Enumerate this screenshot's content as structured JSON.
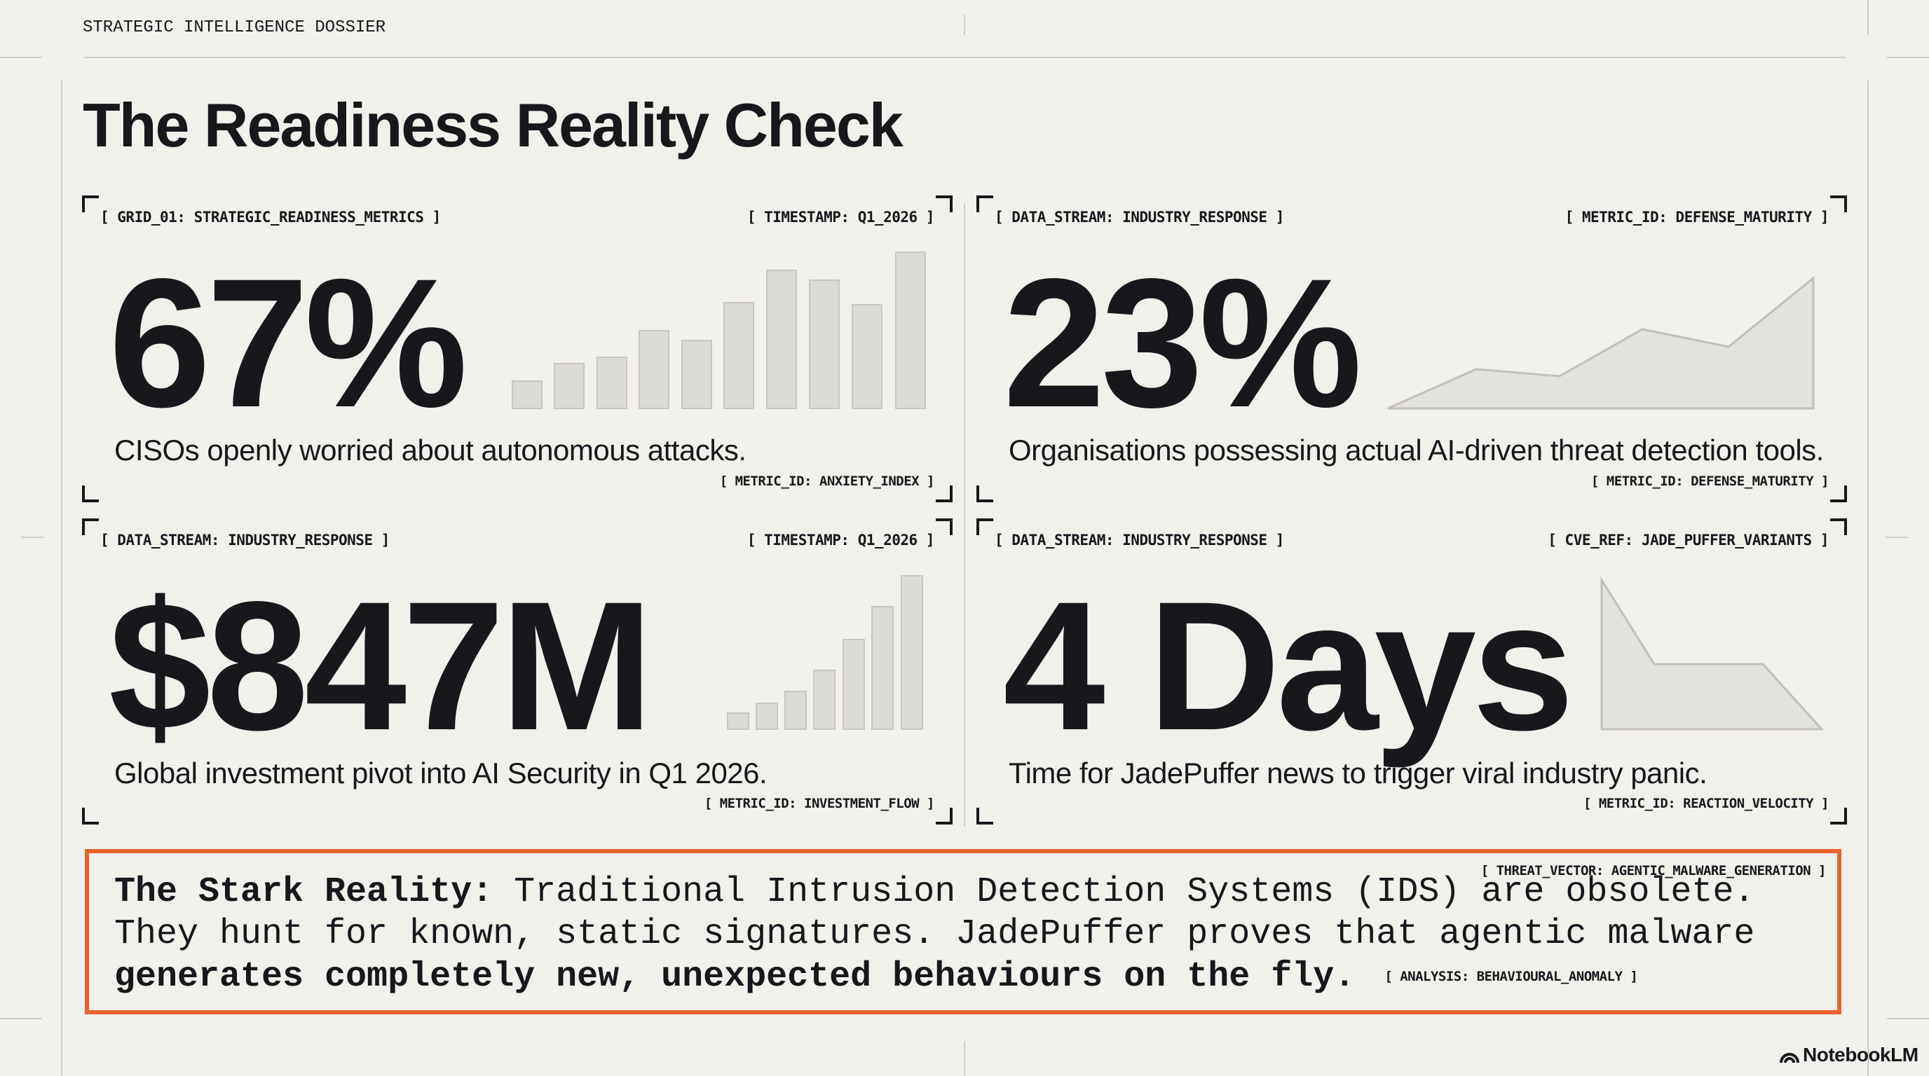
{
  "header": {
    "label": "STRATEGIC INTELLIGENCE DOSSIER"
  },
  "title": "The Readiness Reality Check",
  "panels": [
    {
      "tag_left": "[ GRID_01: STRATEGIC_READINESS_METRICS ]",
      "tag_right": "[ TIMESTAMP: Q1_2026 ]",
      "value": "67%",
      "caption": "CISOs openly worried about autonomous attacks.",
      "footer_tag": "[ METRIC_ID: ANXIETY_INDEX ]"
    },
    {
      "tag_left": "[ DATA_STREAM: INDUSTRY_RESPONSE ]",
      "tag_right": "[ METRIC_ID: DEFENSE_MATURITY ]",
      "value": "23%",
      "caption": "Organisations possessing actual AI-driven threat detection tools.",
      "footer_tag": "[ METRIC_ID: DEFENSE_MATURITY ]"
    },
    {
      "tag_left": "[ DATA_STREAM: INDUSTRY_RESPONSE ]",
      "tag_right": "[ TIMESTAMP: Q1_2026 ]",
      "value": "$847M",
      "caption": "Global investment pivot into AI Security in Q1 2026.",
      "footer_tag": "[ METRIC_ID: INVESTMENT_FLOW ]"
    },
    {
      "tag_left": "[ DATA_STREAM: INDUSTRY_RESPONSE ]",
      "tag_right": "[ CVE_REF: JADE_PUFFER_VARIANTS ]",
      "value": "4 Days",
      "caption": "Time for JadePuffer news to trigger viral industry panic.",
      "footer_tag": "[ METRIC_ID: REACTION_VELOCITY ]"
    }
  ],
  "callout": {
    "tag": "[ THREAT_VECTOR: AGENTIC_MALWARE_GENERATION ]",
    "lead": "The Stark Reality:",
    "body": "Traditional Intrusion Detection Systems (IDS) are obsolete. They hunt for known, static signatures. JadePuffer proves that agentic malware",
    "emphasis": "generates completely new, unexpected behaviours on the fly.",
    "footer_tag": "[ ANALYSIS: BEHAVIOURAL_ANOMALY ]"
  },
  "brand": "NotebookLM"
}
